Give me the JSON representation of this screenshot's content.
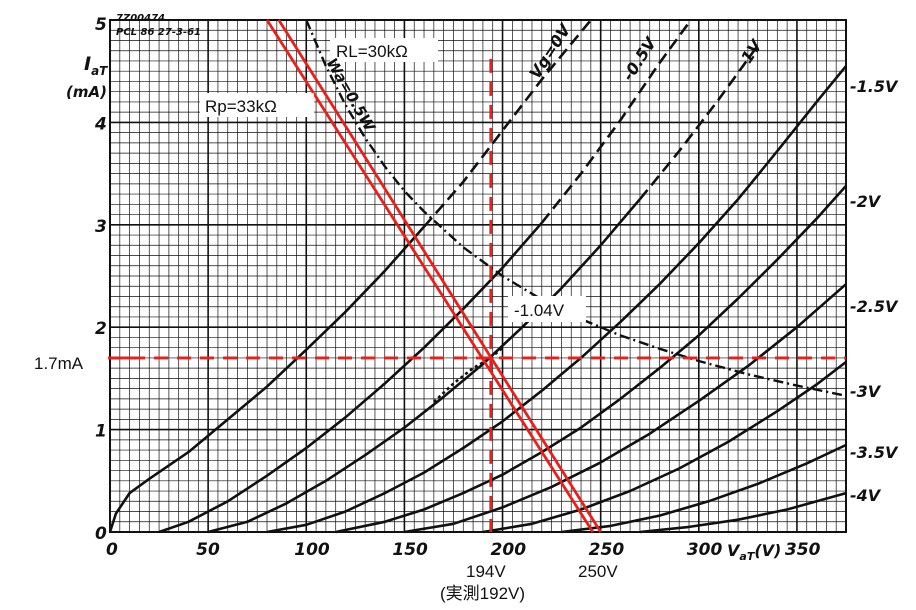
{
  "chart_data": {
    "type": "line",
    "title": "",
    "stamp": [
      "7Z00474",
      "PCL 86  27-3-61"
    ],
    "xlabel": "V",
    "xlabel_sub": "aT",
    "xlabel_unit": "(V)",
    "ylabel": "I",
    "ylabel_sub": "aT",
    "ylabel_unit": "(mA)",
    "xlim": [
      0,
      375
    ],
    "ylim": [
      0,
      5
    ],
    "x_ticks": [
      0,
      50,
      100,
      150,
      200,
      250,
      300,
      350
    ],
    "y_ticks": [
      0,
      1,
      2,
      3,
      4,
      5
    ],
    "grid": true,
    "series": [
      {
        "name": "Vg=0V",
        "x": [
          0,
          3,
          10,
          20,
          40,
          60,
          80,
          100,
          120,
          140,
          160,
          180,
          200,
          220,
          245
        ],
        "y": [
          0,
          0.18,
          0.38,
          0.52,
          0.78,
          1.1,
          1.42,
          1.78,
          2.15,
          2.55,
          2.98,
          3.42,
          3.92,
          4.42,
          5.0
        ]
      },
      {
        "name": "-0.5V",
        "x": [
          25,
          40,
          60,
          80,
          100,
          120,
          140,
          160,
          180,
          200,
          220,
          240,
          260,
          280,
          296
        ],
        "y": [
          0,
          0.1,
          0.3,
          0.55,
          0.82,
          1.12,
          1.45,
          1.8,
          2.18,
          2.58,
          3.02,
          3.5,
          4.02,
          4.58,
          5.0
        ]
      },
      {
        "name": "-1V",
        "x": [
          50,
          70,
          90,
          110,
          130,
          150,
          170,
          190,
          210,
          230,
          250,
          270,
          290,
          310,
          330
        ],
        "y": [
          0,
          0.1,
          0.28,
          0.5,
          0.75,
          1.02,
          1.32,
          1.64,
          2.0,
          2.38,
          2.8,
          3.25,
          3.72,
          4.22,
          4.75
        ]
      },
      {
        "name": "-1.5V",
        "x": [
          80,
          100,
          120,
          140,
          160,
          180,
          200,
          220,
          240,
          260,
          280,
          300,
          320,
          340,
          360,
          375
        ],
        "y": [
          0,
          0.07,
          0.2,
          0.38,
          0.58,
          0.82,
          1.08,
          1.38,
          1.7,
          2.05,
          2.42,
          2.82,
          3.25,
          3.72,
          4.2,
          4.55
        ]
      },
      {
        "name": "-2V",
        "x": [
          115,
          140,
          160,
          180,
          200,
          220,
          240,
          260,
          280,
          300,
          320,
          340,
          360,
          375
        ],
        "y": [
          0,
          0.1,
          0.22,
          0.38,
          0.56,
          0.78,
          1.02,
          1.3,
          1.6,
          1.92,
          2.28,
          2.66,
          3.06,
          3.38
        ]
      },
      {
        "name": "-2.5V",
        "x": [
          150,
          175,
          200,
          225,
          250,
          275,
          300,
          325,
          350,
          375
        ],
        "y": [
          0,
          0.08,
          0.24,
          0.44,
          0.68,
          0.96,
          1.28,
          1.62,
          2.0,
          2.42
        ]
      },
      {
        "name": "-3V",
        "x": [
          190,
          215,
          240,
          265,
          290,
          315,
          340,
          360,
          375
        ],
        "y": [
          0,
          0.08,
          0.22,
          0.4,
          0.62,
          0.88,
          1.18,
          1.44,
          1.66
        ]
      },
      {
        "name": "-3.5V",
        "x": [
          230,
          255,
          280,
          305,
          330,
          355,
          375
        ],
        "y": [
          0,
          0.06,
          0.16,
          0.3,
          0.47,
          0.67,
          0.85
        ]
      },
      {
        "name": "-4V",
        "x": [
          270,
          295,
          320,
          345,
          375
        ],
        "y": [
          0,
          0.05,
          0.12,
          0.22,
          0.38
        ]
      }
    ],
    "dissipation_curve": {
      "name": "Wa=0.5W",
      "x": [
        100,
        110,
        120,
        130,
        140,
        150,
        160,
        180,
        200,
        220,
        240,
        260,
        280,
        300,
        325,
        350,
        375
      ],
      "y": [
        5.0,
        4.55,
        4.17,
        3.85,
        3.57,
        3.33,
        3.13,
        2.78,
        2.5,
        2.27,
        2.08,
        1.92,
        1.79,
        1.67,
        1.54,
        1.43,
        1.33
      ]
    },
    "interpolated_curve": {
      "name": "-1.04V",
      "x": [
        165,
        175,
        185,
        194,
        200
      ],
      "y": [
        1.27,
        1.45,
        1.6,
        1.7,
        1.8
      ]
    },
    "load_lines": [
      {
        "name": "RL=30kΩ",
        "x": [
          86,
          250
        ],
        "y": [
          5.0,
          0.0
        ]
      },
      {
        "name": "Rp=33kΩ",
        "x": [
          80,
          246
        ],
        "y": [
          5.0,
          0.0
        ]
      }
    ],
    "operating_point": {
      "x": 194,
      "y": 1.7
    },
    "annotations": {
      "current": "1.7mA",
      "voltage": "194V",
      "measured": "(実測192V)",
      "cutoff": "250V"
    },
    "colors": {
      "red": "#e8201c",
      "grid": "#111111",
      "curves": "#111111"
    }
  }
}
